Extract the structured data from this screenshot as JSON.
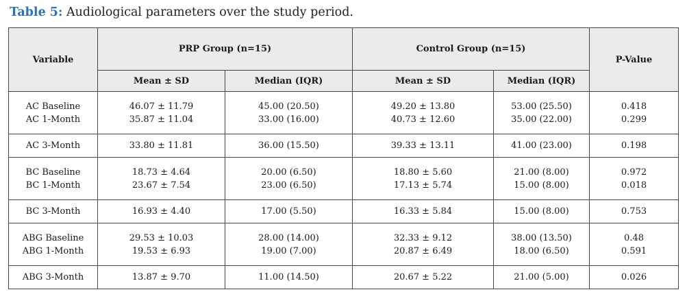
{
  "caption": {
    "label": "Table 5:",
    "text": "Audiological parameters over the study period."
  },
  "headers": {
    "variable": "Variable",
    "prp_group": "PRP Group (n=15)",
    "control_group": "Control Group (n=15)",
    "p_value": "P-Value",
    "mean_sd": "Mean ± SD",
    "median_iqr": "Median (IQR)"
  },
  "rows": [
    {
      "variable": [
        "AC Baseline",
        "AC 1-Month"
      ],
      "prp_mean": [
        "46.07 ± 11.79",
        "35.87 ± 11.04"
      ],
      "prp_median": [
        "45.00 (20.50)",
        "33.00 (16.00)"
      ],
      "ctrl_mean": [
        "49.20 ± 13.80",
        "40.73 ± 12.60"
      ],
      "ctrl_median": [
        "53.00 (25.50)",
        "35.00 (22.00)"
      ],
      "p": [
        "0.418",
        "0.299"
      ]
    },
    {
      "variable": "AC 3-Month",
      "prp_mean": "33.80 ± 11.81",
      "prp_median": "36.00 (15.50)",
      "ctrl_mean": "39.33 ± 13.11",
      "ctrl_median": "41.00 (23.00)",
      "p": "0.198"
    },
    {
      "variable": [
        "BC Baseline",
        "BC 1-Month"
      ],
      "prp_mean": [
        "18.73 ± 4.64",
        "23.67 ± 7.54"
      ],
      "prp_median": [
        "20.00 (6.50)",
        "23.00 (6.50)"
      ],
      "ctrl_mean": [
        "18.80 ± 5.60",
        "17.13 ± 5.74"
      ],
      "ctrl_median": [
        "21.00 (8.00)",
        "15.00 (8.00)"
      ],
      "p": [
        "0.972",
        "0.018"
      ]
    },
    {
      "variable": "BC 3-Month",
      "prp_mean": "16.93 ± 4.40",
      "prp_median": "17.00 (5.50)",
      "ctrl_mean": "16.33 ± 5.84",
      "ctrl_median": "15.00 (8.00)",
      "p": "0.753"
    },
    {
      "variable": [
        "ABG Baseline",
        "ABG 1-Month"
      ],
      "prp_mean": [
        "29.53 ± 10.03",
        "19.53 ± 6.93"
      ],
      "prp_median": [
        "28.00 (14.00)",
        "19.00 (7.00)"
      ],
      "ctrl_mean": [
        "32.33 ± 9.12",
        "20.87 ± 6.49"
      ],
      "ctrl_median": [
        "38.00 (13.50)",
        "18.00 (6.50)"
      ],
      "p": [
        "0.48",
        "0.591"
      ]
    },
    {
      "variable": "ABG 3-Month",
      "prp_mean": "13.87 ± 9.70",
      "prp_median": "11.00 (14.50)",
      "ctrl_mean": "20.67 ± 5.22",
      "ctrl_median": "21.00 (5.00)",
      "p": "0.026"
    }
  ]
}
